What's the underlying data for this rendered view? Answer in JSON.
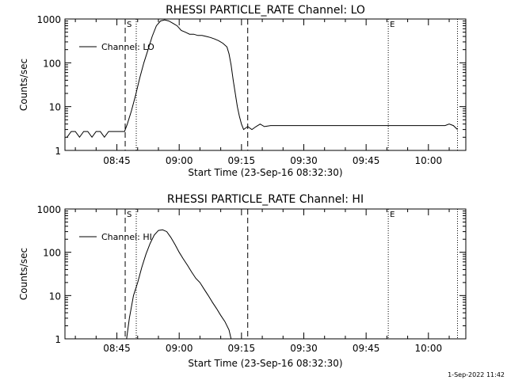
{
  "footer_timestamp": "1-Sep-2022 11:42",
  "chart_data": [
    {
      "type": "line",
      "title": "RHESSI PARTICLE_RATE Channel: LO",
      "xlabel": "Start Time (23-Sep-16 08:32:30)",
      "ylabel": "Counts/sec",
      "xlim": [
        "08:32:30",
        "10:09:00"
      ],
      "ylim": [
        1,
        1000
      ],
      "yscale": "log",
      "x_ticks": [
        "08:45",
        "09:00",
        "09:15",
        "09:30",
        "09:45",
        "10:00"
      ],
      "y_ticks": [
        "1",
        "10",
        "100",
        "1000"
      ],
      "legend": {
        "placement": "top-left",
        "entries": [
          "Channel: LO"
        ]
      },
      "markers": [
        {
          "time": "08:47:00",
          "style": "dashed",
          "label": "S"
        },
        {
          "time": "08:49:40",
          "style": "dotted",
          "label": ""
        },
        {
          "time": "09:16:30",
          "style": "dashed",
          "label": ""
        },
        {
          "time": "09:50:20",
          "style": "dotted",
          "label": "E"
        },
        {
          "time": "10:07:00",
          "style": "dotted",
          "label": ""
        }
      ],
      "series": [
        {
          "name": "Channel: LO",
          "x": [
            "08:33:00",
            "08:34:00",
            "08:35:00",
            "08:36:00",
            "08:37:00",
            "08:38:00",
            "08:39:00",
            "08:40:00",
            "08:41:00",
            "08:42:00",
            "08:43:00",
            "08:44:00",
            "08:45:00",
            "08:46:00",
            "08:46:50",
            "08:47:30",
            "08:48:30",
            "08:49:30",
            "08:50:30",
            "08:51:30",
            "08:52:30",
            "08:53:30",
            "08:54:30",
            "08:55:30",
            "08:56:30",
            "08:57:30",
            "08:58:30",
            "08:59:30",
            "09:00:30",
            "09:01:30",
            "09:02:30",
            "09:03:30",
            "09:04:30",
            "09:05:30",
            "09:06:30",
            "09:07:30",
            "09:08:30",
            "09:09:30",
            "09:10:30",
            "09:11:30",
            "09:12:00",
            "09:12:30",
            "09:13:00",
            "09:13:30",
            "09:14:00",
            "09:14:30",
            "09:15:00",
            "09:15:30",
            "09:16:30",
            "09:17:30",
            "09:18:30",
            "09:19:30",
            "09:20:30",
            "09:22:00",
            "09:24:00",
            "09:26:00",
            "09:28:00",
            "09:30:00",
            "09:32:00",
            "09:34:00",
            "09:36:00",
            "09:38:00",
            "09:40:00",
            "09:42:00",
            "09:44:00",
            "09:46:00",
            "09:48:00",
            "09:50:00",
            "09:52:00",
            "09:54:00",
            "09:56:00",
            "09:58:00",
            "10:00:00",
            "10:02:00",
            "10:04:00",
            "10:05:00",
            "10:06:00",
            "10:07:00"
          ],
          "y": [
            2.0,
            2.7,
            2.7,
            2.0,
            2.7,
            2.7,
            2.0,
            2.7,
            2.7,
            2.0,
            2.7,
            2.7,
            2.7,
            2.7,
            2.7,
            4.0,
            8.0,
            18,
            45,
            100,
            200,
            400,
            700,
            900,
            950,
            900,
            800,
            700,
            550,
            500,
            450,
            450,
            420,
            420,
            400,
            380,
            350,
            320,
            280,
            230,
            160,
            90,
            40,
            20,
            10,
            6,
            4,
            3.0,
            3.5,
            3.0,
            3.5,
            4.0,
            3.5,
            3.7,
            3.7,
            3.7,
            3.7,
            3.7,
            3.7,
            3.7,
            3.7,
            3.7,
            3.7,
            3.7,
            3.7,
            3.7,
            3.7,
            3.7,
            3.7,
            3.7,
            3.7,
            3.7,
            3.7,
            3.7,
            3.7,
            4.0,
            3.7,
            3.0
          ]
        }
      ]
    },
    {
      "type": "line",
      "title": "RHESSI PARTICLE_RATE Channel: HI",
      "xlabel": "Start Time (23-Sep-16 08:32:30)",
      "ylabel": "Counts/sec",
      "xlim": [
        "08:32:30",
        "10:09:00"
      ],
      "ylim": [
        1,
        1000
      ],
      "yscale": "log",
      "x_ticks": [
        "08:45",
        "09:00",
        "09:15",
        "09:30",
        "09:45",
        "10:00"
      ],
      "y_ticks": [
        "1",
        "10",
        "100",
        "1000"
      ],
      "legend": {
        "placement": "top-left",
        "entries": [
          "Channel: HI"
        ]
      },
      "markers": [
        {
          "time": "08:47:00",
          "style": "dashed",
          "label": "S"
        },
        {
          "time": "08:49:40",
          "style": "dotted",
          "label": ""
        },
        {
          "time": "09:16:30",
          "style": "dashed",
          "label": ""
        },
        {
          "time": "09:50:20",
          "style": "dotted",
          "label": "E"
        },
        {
          "time": "10:07:00",
          "style": "dotted",
          "label": ""
        }
      ],
      "series": [
        {
          "name": "Channel: HI",
          "x": [
            "08:47:20",
            "08:48:00",
            "08:49:00",
            "08:50:00",
            "08:51:00",
            "08:52:00",
            "08:53:00",
            "08:54:00",
            "08:55:00",
            "08:56:00",
            "08:57:00",
            "08:58:00",
            "08:59:00",
            "09:00:00",
            "09:01:00",
            "09:02:00",
            "09:03:00",
            "09:04:00",
            "09:05:00",
            "09:06:00",
            "09:07:00",
            "09:08:00",
            "09:09:00",
            "09:10:00",
            "09:11:00",
            "09:12:00",
            "09:12:30"
          ],
          "y": [
            1.0,
            3.0,
            10,
            20,
            45,
            90,
            160,
            250,
            320,
            330,
            300,
            220,
            150,
            100,
            70,
            50,
            35,
            25,
            20,
            14,
            10,
            7,
            5,
            3.5,
            2.5,
            1.6,
            1.0
          ]
        }
      ]
    }
  ]
}
